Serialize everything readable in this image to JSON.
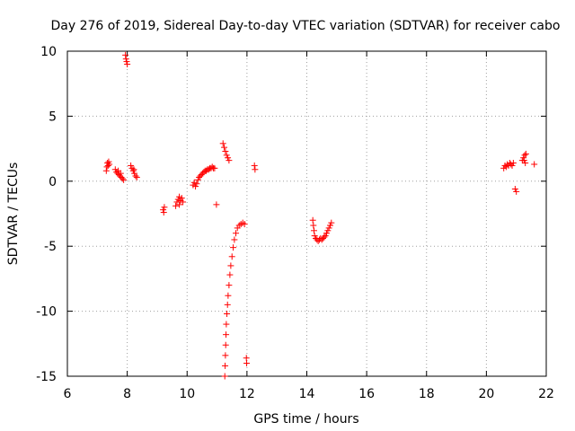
{
  "chart_data": {
    "type": "scatter",
    "title": "Day 276 of 2019, Sidereal Day-to-day VTEC variation (SDTVAR) for receiver cabo",
    "xlabel": "GPS time / hours",
    "ylabel": "SDTVAR / TECUs",
    "xlim": [
      6,
      22
    ],
    "ylim": [
      -15,
      10
    ],
    "xticks": [
      6,
      8,
      10,
      12,
      14,
      16,
      18,
      20,
      22
    ],
    "yticks": [
      -15,
      -10,
      -5,
      0,
      5,
      10
    ],
    "grid": true,
    "marker": "+",
    "color": "#ff0000",
    "series": [
      {
        "name": "sdtvar",
        "points": [
          [
            7.3,
            0.8
          ],
          [
            7.32,
            1.1
          ],
          [
            7.34,
            1.4
          ],
          [
            7.36,
            1.2
          ],
          [
            7.38,
            1.5
          ],
          [
            7.4,
            1.3
          ],
          [
            7.6,
            0.9
          ],
          [
            7.64,
            0.7
          ],
          [
            7.68,
            0.6
          ],
          [
            7.72,
            0.5
          ],
          [
            7.76,
            0.4
          ],
          [
            7.8,
            0.3
          ],
          [
            7.84,
            0.2
          ],
          [
            7.88,
            0.1
          ],
          [
            7.7,
            0.8
          ],
          [
            7.78,
            0.6
          ],
          [
            7.94,
            9.7
          ],
          [
            7.96,
            9.4
          ],
          [
            7.98,
            9.2
          ],
          [
            8.0,
            9.0
          ],
          [
            8.12,
            1.2
          ],
          [
            8.16,
            1.0
          ],
          [
            8.2,
            0.8
          ],
          [
            8.24,
            0.6
          ],
          [
            8.28,
            0.4
          ],
          [
            8.32,
            0.3
          ],
          [
            8.22,
            0.9
          ],
          [
            9.2,
            -2.2
          ],
          [
            9.22,
            -2.4
          ],
          [
            9.24,
            -2.0
          ],
          [
            9.62,
            -1.9
          ],
          [
            9.66,
            -1.6
          ],
          [
            9.7,
            -1.4
          ],
          [
            9.74,
            -1.2
          ],
          [
            9.78,
            -1.5
          ],
          [
            9.82,
            -1.3
          ],
          [
            9.86,
            -1.6
          ],
          [
            9.74,
            -1.8
          ],
          [
            10.2,
            -0.3
          ],
          [
            10.24,
            -0.1
          ],
          [
            10.28,
            -0.4
          ],
          [
            10.32,
            -0.2
          ],
          [
            10.36,
            0.1
          ],
          [
            10.4,
            0.3
          ],
          [
            10.44,
            0.4
          ],
          [
            10.48,
            0.5
          ],
          [
            10.52,
            0.6
          ],
          [
            10.56,
            0.7
          ],
          [
            10.6,
            0.8
          ],
          [
            10.64,
            0.8
          ],
          [
            10.68,
            0.9
          ],
          [
            10.72,
            0.9
          ],
          [
            10.76,
            1.0
          ],
          [
            10.8,
            1.0
          ],
          [
            10.84,
            1.1
          ],
          [
            10.88,
            1.0
          ],
          [
            10.92,
            1.0
          ],
          [
            10.98,
            -1.8
          ],
          [
            11.2,
            2.9
          ],
          [
            11.24,
            2.6
          ],
          [
            11.28,
            2.3
          ],
          [
            11.32,
            2.0
          ],
          [
            11.36,
            1.8
          ],
          [
            11.4,
            1.6
          ],
          [
            11.26,
            -15.0
          ],
          [
            11.27,
            -14.2
          ],
          [
            11.28,
            -13.4
          ],
          [
            11.29,
            -12.6
          ],
          [
            11.3,
            -11.8
          ],
          [
            11.31,
            -11.0
          ],
          [
            11.33,
            -10.2
          ],
          [
            11.35,
            -9.5
          ],
          [
            11.37,
            -8.8
          ],
          [
            11.4,
            -8.0
          ],
          [
            11.43,
            -7.2
          ],
          [
            11.46,
            -6.5
          ],
          [
            11.5,
            -5.8
          ],
          [
            11.54,
            -5.1
          ],
          [
            11.58,
            -4.5
          ],
          [
            11.63,
            -4.0
          ],
          [
            11.68,
            -3.6
          ],
          [
            11.74,
            -3.4
          ],
          [
            11.8,
            -3.3
          ],
          [
            11.86,
            -3.2
          ],
          [
            11.92,
            -3.3
          ],
          [
            11.98,
            -13.6
          ],
          [
            11.99,
            -14.0
          ],
          [
            12.25,
            1.2
          ],
          [
            12.27,
            0.9
          ],
          [
            14.2,
            -3.0
          ],
          [
            14.22,
            -3.4
          ],
          [
            14.24,
            -3.8
          ],
          [
            14.26,
            -4.2
          ],
          [
            14.3,
            -4.4
          ],
          [
            14.34,
            -4.5
          ],
          [
            14.38,
            -4.6
          ],
          [
            14.42,
            -4.5
          ],
          [
            14.46,
            -4.4
          ],
          [
            14.5,
            -4.5
          ],
          [
            14.54,
            -4.4
          ],
          [
            14.58,
            -4.3
          ],
          [
            14.62,
            -4.2
          ],
          [
            14.66,
            -4.0
          ],
          [
            14.7,
            -3.8
          ],
          [
            14.74,
            -3.6
          ],
          [
            14.78,
            -3.4
          ],
          [
            14.82,
            -3.2
          ],
          [
            20.58,
            1.0
          ],
          [
            20.62,
            1.2
          ],
          [
            20.66,
            1.1
          ],
          [
            20.7,
            1.3
          ],
          [
            20.74,
            1.2
          ],
          [
            20.78,
            1.4
          ],
          [
            20.82,
            1.3
          ],
          [
            20.86,
            1.2
          ],
          [
            20.9,
            1.4
          ],
          [
            20.96,
            -0.6
          ],
          [
            21.0,
            -0.8
          ],
          [
            21.2,
            1.6
          ],
          [
            21.24,
            1.8
          ],
          [
            21.28,
            2.0
          ],
          [
            21.32,
            2.1
          ],
          [
            21.3,
            1.4
          ],
          [
            21.26,
            1.6
          ],
          [
            21.6,
            1.3
          ]
        ]
      }
    ]
  }
}
